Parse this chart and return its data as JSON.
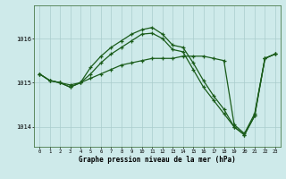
{
  "xlabel": "Graphe pression niveau de la mer (hPa)",
  "bg_color": "#ceeaea",
  "grid_color": "#aacccc",
  "line_color": "#1a5c1a",
  "x_ticks": [
    0,
    1,
    2,
    3,
    4,
    5,
    6,
    7,
    8,
    9,
    10,
    11,
    12,
    13,
    14,
    15,
    16,
    17,
    18,
    19,
    20,
    21,
    22,
    23
  ],
  "ylim": [
    1013.55,
    1016.75
  ],
  "yticks": [
    1014,
    1015,
    1016
  ],
  "line1_y": [
    1015.2,
    1015.05,
    1015.0,
    1014.95,
    1015.0,
    1015.1,
    1015.2,
    1015.3,
    1015.4,
    1015.45,
    1015.5,
    1015.55,
    1015.55,
    1015.55,
    1015.6,
    1015.6,
    1015.6,
    1015.55,
    1015.5,
    1014.05,
    1013.85,
    1014.3,
    1015.55,
    1015.65
  ],
  "line2_y": [
    1015.2,
    1015.05,
    1015.0,
    1014.9,
    1015.0,
    1015.35,
    1015.6,
    1015.8,
    1015.95,
    1016.1,
    1016.2,
    1016.25,
    1016.1,
    1015.85,
    1015.8,
    1015.45,
    1015.05,
    1014.7,
    1014.4,
    1014.0,
    1013.82,
    1014.25,
    1015.55,
    1015.65
  ],
  "line3_y": [
    1015.2,
    1015.05,
    1015.0,
    1014.9,
    1015.0,
    1015.2,
    1015.45,
    1015.65,
    1015.8,
    1015.95,
    1016.1,
    1016.12,
    1016.0,
    1015.75,
    1015.7,
    1015.3,
    1014.9,
    1014.6,
    1014.3,
    1014.0,
    1013.82,
    1014.25,
    1015.55,
    1015.65
  ]
}
